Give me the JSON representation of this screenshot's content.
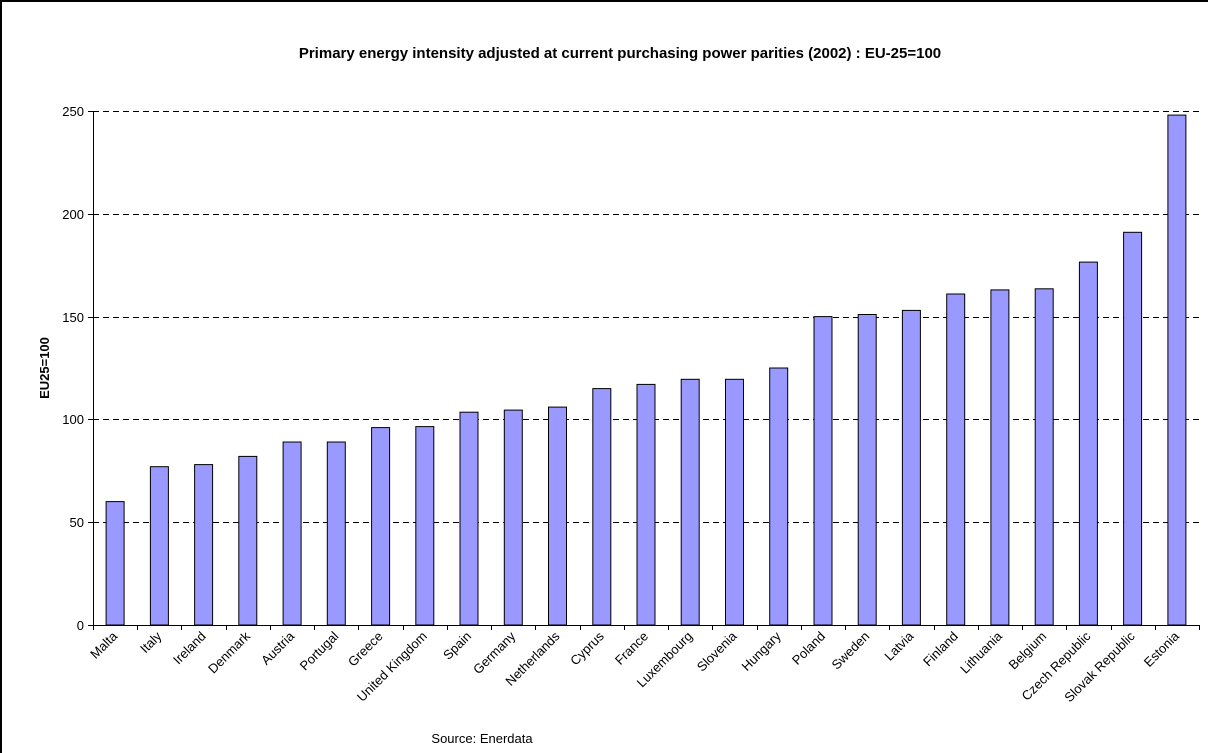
{
  "chart_data": {
    "type": "bar",
    "title": "Primary energy intensity adjusted at current purchasing power parities (2002) : EU-25=100",
    "xlabel": "",
    "ylabel": "EU25=100",
    "ylim": [
      0,
      250
    ],
    "yticks": [
      0,
      50,
      100,
      150,
      200,
      250
    ],
    "grid": "horizontal dashed",
    "legend": "none",
    "categories": [
      "Malta",
      "Italy",
      "Ireland",
      "Denmark",
      "Austria",
      "Portugal",
      "Greece",
      "United Kingdom",
      "Spain",
      "Germany",
      "Netherlands",
      "Cyprus",
      "France",
      "Luxembourg",
      "Slovenia",
      "Hungary",
      "Poland",
      "Sweden",
      "Latvia",
      "Finland",
      "Lithuania",
      "Belgium",
      "Czech Republic",
      "Slovak Republic",
      "Estonia"
    ],
    "values": [
      60,
      77,
      78,
      82,
      89,
      89,
      96,
      96.5,
      103.5,
      104.5,
      106,
      115,
      117,
      119.5,
      119.5,
      125,
      150,
      151,
      153,
      161,
      163,
      163.5,
      176.5,
      191,
      248
    ],
    "bar_color": "#9999ff",
    "bar_stroke": "#000000",
    "note": "Source: Enerdata"
  }
}
